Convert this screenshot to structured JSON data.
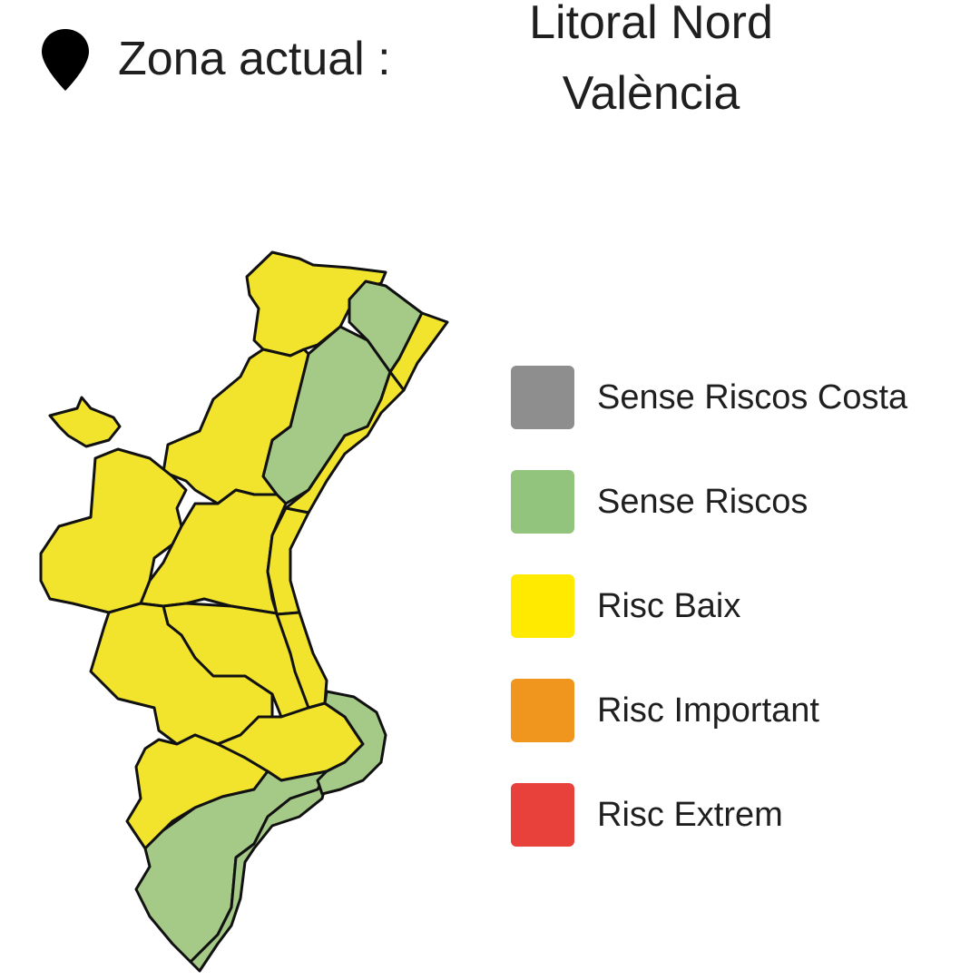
{
  "header": {
    "icon": "map-pin-icon",
    "label": "Zona actual :",
    "zone_line1": "Litoral Nord",
    "zone_line2": "València"
  },
  "map": {
    "colors": {
      "risc_baix": "#f2e42c",
      "sense_riscos": "#a5ca88",
      "border": "#111111"
    }
  },
  "legend": [
    {
      "label": "Sense Riscos Costa",
      "color": "#8e8e8e"
    },
    {
      "label": "Sense Riscos",
      "color": "#93c47d"
    },
    {
      "label": "Risc Baix",
      "color": "#ffea00"
    },
    {
      "label": "Risc Important",
      "color": "#f0961e"
    },
    {
      "label": "Risc Extrem",
      "color": "#e8403a"
    }
  ]
}
